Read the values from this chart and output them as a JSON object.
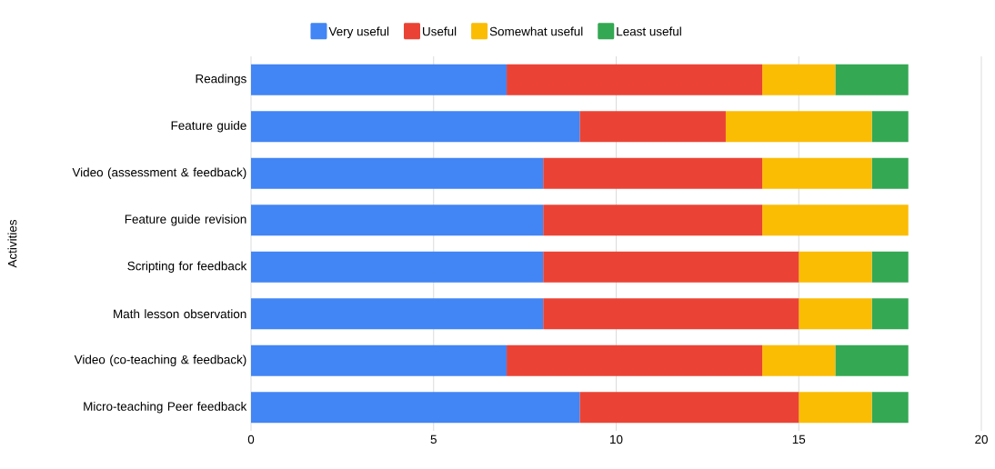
{
  "chart_data": {
    "type": "bar",
    "orientation": "horizontal",
    "stacked": true,
    "ylabel": "Activities",
    "categories": [
      "Readings",
      "Feature guide",
      "Video (assessment & feedback)",
      "Feature guide revision",
      "Scripting for feedback",
      "Math lesson observation",
      "Video (co-teaching & feedback)",
      "Micro-teaching Peer feedback"
    ],
    "series": [
      {
        "name": "Very useful",
        "color": "#4285f4",
        "values": [
          7,
          9,
          8,
          8,
          8,
          8,
          7,
          9
        ]
      },
      {
        "name": "Useful",
        "color": "#ea4335",
        "values": [
          7,
          4,
          6,
          6,
          7,
          7,
          7,
          6
        ]
      },
      {
        "name": "Somewhat useful",
        "color": "#fbbc04",
        "values": [
          2,
          4,
          3,
          4,
          2,
          2,
          2,
          2
        ]
      },
      {
        "name": "Least useful",
        "color": "#34a853",
        "values": [
          2,
          1,
          1,
          0,
          1,
          1,
          2,
          1
        ]
      }
    ],
    "xlim": [
      0,
      20
    ],
    "xticks": [
      0,
      5,
      10,
      15,
      20
    ],
    "grid": "x",
    "legend": "top"
  }
}
